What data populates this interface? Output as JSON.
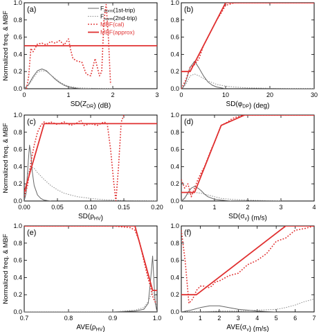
{
  "chart_data": [
    {
      "type": "line",
      "panel_label": "(a)",
      "xlabel": "SD(Z_DR) (dB)",
      "ylabel": "Normalized freq. & MBF",
      "xlim": [
        0,
        3
      ],
      "ylim": [
        0,
        1.0
      ],
      "xticks": [
        0,
        1,
        2,
        3
      ],
      "xtick_labels": [
        "0",
        "1",
        "2",
        "3"
      ],
      "yticks": [
        0,
        0.2,
        0.4,
        0.6,
        0.8,
        1.0
      ],
      "ytick_labels": [
        "0.0",
        "0.2",
        "0.4",
        "0.6",
        "0.8",
        "1.0"
      ],
      "legend": {
        "placement": "top-right",
        "entries": [
          "F_norm(1st-trip)",
          "F_norm(2nd-trip)",
          "MBF(cal)",
          "MBF(approx)"
        ]
      },
      "series": [
        {
          "style": "solid-gray",
          "x": [
            0.0,
            0.1,
            0.2,
            0.3,
            0.4,
            0.5,
            0.6,
            0.7,
            0.8,
            0.9,
            1.0,
            1.1,
            1.2,
            1.3,
            1.5
          ],
          "y": [
            0.0,
            0.05,
            0.14,
            0.21,
            0.23,
            0.21,
            0.16,
            0.11,
            0.07,
            0.04,
            0.02,
            0.01,
            0.005,
            0.0,
            0.0
          ]
        },
        {
          "style": "dotted-gray",
          "x": [
            0.0,
            0.1,
            0.2,
            0.3,
            0.4,
            0.5,
            0.6,
            0.7,
            0.8,
            0.9,
            1.0,
            1.2,
            1.5,
            1.8,
            2.0
          ],
          "y": [
            0.0,
            0.04,
            0.12,
            0.19,
            0.21,
            0.2,
            0.16,
            0.12,
            0.08,
            0.05,
            0.03,
            0.01,
            0.005,
            0.0,
            0.0
          ]
        },
        {
          "style": "dotted-red",
          "x": [
            0.05,
            0.1,
            0.15,
            0.2,
            0.3,
            0.4,
            0.5,
            0.6,
            0.7,
            0.8,
            0.9,
            1.0,
            1.05,
            1.1,
            1.2,
            1.3,
            1.4,
            1.5,
            1.6,
            1.7,
            1.75,
            1.8,
            1.85,
            1.9,
            1.95
          ],
          "y": [
            0.0,
            0.14,
            0.47,
            0.43,
            0.52,
            0.53,
            0.51,
            0.55,
            0.53,
            0.56,
            0.51,
            0.58,
            0.45,
            0.35,
            0.32,
            0.31,
            0.17,
            0.15,
            0.35,
            0.15,
            0.2,
            0.8,
            0.98,
            0.6,
            0.05
          ]
        },
        {
          "style": "solid-red",
          "x": [
            0,
            3
          ],
          "y": [
            0.5,
            0.5
          ]
        }
      ]
    },
    {
      "type": "line",
      "panel_label": "(b)",
      "xlabel": "SD(φ_DP) (deg)",
      "ylabel": "",
      "xlim": [
        0,
        30
      ],
      "ylim": [
        0,
        1.0
      ],
      "xticks": [
        0,
        10,
        20,
        30
      ],
      "xtick_labels": [
        "0",
        "10",
        "20",
        "30"
      ],
      "yticks": [
        0,
        0.2,
        0.4,
        0.6,
        0.8,
        1.0
      ],
      "ytick_labels": [
        "0.0",
        "0.2",
        "0.4",
        "0.6",
        "0.8",
        "1.0"
      ],
      "series": [
        {
          "style": "solid-gray",
          "x": [
            0,
            0.5,
            1,
            2,
            3,
            4,
            5,
            6,
            7,
            8,
            9,
            10
          ],
          "y": [
            0.0,
            0.02,
            0.08,
            0.25,
            0.32,
            0.24,
            0.15,
            0.08,
            0.04,
            0.02,
            0.01,
            0.0
          ]
        },
        {
          "style": "dotted-gray",
          "x": [
            0,
            1,
            2,
            3,
            4,
            5,
            6,
            8,
            10,
            12,
            15,
            20,
            25,
            30
          ],
          "y": [
            0.0,
            0.05,
            0.15,
            0.17,
            0.15,
            0.12,
            0.09,
            0.05,
            0.03,
            0.02,
            0.01,
            0.005,
            0.0,
            0.0
          ]
        },
        {
          "style": "dotted-red",
          "x": [
            0,
            1,
            2,
            3,
            4,
            5,
            6,
            7,
            8,
            9,
            10,
            12,
            15,
            20,
            25,
            30
          ],
          "y": [
            0.0,
            0.1,
            0.25,
            0.28,
            0.35,
            0.5,
            0.6,
            0.7,
            0.8,
            0.88,
            0.97,
            1.0,
            1.0,
            1.0,
            1.0,
            1.0
          ]
        },
        {
          "style": "solid-red",
          "x": [
            0,
            2,
            10,
            30
          ],
          "y": [
            0.2,
            0.2,
            1.0,
            1.0
          ]
        }
      ]
    },
    {
      "type": "line",
      "panel_label": "(c)",
      "xlabel": "SD(ρ_HV)",
      "ylabel": "Normalized freq. & MBF",
      "xlim": [
        0,
        0.2
      ],
      "ylim": [
        0,
        1.0
      ],
      "xticks": [
        0,
        0.05,
        0.1,
        0.15,
        0.2
      ],
      "xtick_labels": [
        "0.00",
        "0.05",
        "0.10",
        "0.15",
        "0.20"
      ],
      "yticks": [
        0,
        0.2,
        0.4,
        0.6,
        0.8,
        1.0
      ],
      "ytick_labels": [
        "0.0",
        "0.2",
        "0.4",
        "0.6",
        "0.8",
        "1.0"
      ],
      "series": [
        {
          "style": "solid-gray",
          "x": [
            0,
            0.003,
            0.006,
            0.008,
            0.01,
            0.012,
            0.015,
            0.02,
            0.025,
            0.03,
            0.04
          ],
          "y": [
            0.0,
            0.1,
            0.45,
            0.65,
            0.55,
            0.35,
            0.18,
            0.07,
            0.03,
            0.01,
            0.0
          ]
        },
        {
          "style": "dotted-gray",
          "x": [
            0,
            0.005,
            0.01,
            0.015,
            0.02,
            0.03,
            0.04,
            0.05,
            0.06,
            0.08,
            0.1,
            0.12,
            0.15,
            0.2
          ],
          "y": [
            0.0,
            0.3,
            0.4,
            0.38,
            0.33,
            0.25,
            0.18,
            0.13,
            0.09,
            0.05,
            0.03,
            0.015,
            0.005,
            0.0
          ]
        },
        {
          "style": "dotted-red",
          "x": [
            0,
            0.005,
            0.01,
            0.015,
            0.02,
            0.025,
            0.03,
            0.035,
            0.04,
            0.05,
            0.06,
            0.07,
            0.08,
            0.085,
            0.09,
            0.1,
            0.11,
            0.12,
            0.125,
            0.13,
            0.135,
            0.138,
            0.142,
            0.146,
            0.15
          ],
          "y": [
            0.05,
            0.18,
            0.45,
            0.65,
            0.8,
            0.88,
            0.92,
            0.9,
            0.92,
            0.89,
            0.92,
            0.88,
            0.91,
            0.94,
            0.88,
            0.9,
            0.88,
            0.92,
            0.9,
            0.6,
            0.2,
            0.0,
            0.4,
            0.92,
            1.0
          ]
        },
        {
          "style": "solid-red",
          "x": [
            0,
            0.03,
            0.2
          ],
          "y": [
            0.1,
            0.9,
            0.9
          ]
        }
      ]
    },
    {
      "type": "line",
      "panel_label": "(d)",
      "xlabel": "SD(σ_v) (m/s)",
      "ylabel": "",
      "xlim": [
        0,
        4
      ],
      "ylim": [
        0,
        1.0
      ],
      "xticks": [
        0,
        1,
        2,
        3,
        4
      ],
      "xtick_labels": [
        "0",
        "1",
        "2",
        "3",
        "4"
      ],
      "yticks": [
        0,
        0.2,
        0.4,
        0.6,
        0.8,
        1.0
      ],
      "ytick_labels": [
        "0.0",
        "0.2",
        "0.4",
        "0.6",
        "0.8",
        "1.0"
      ],
      "series": [
        {
          "style": "solid-gray",
          "x": [
            0,
            0.1,
            0.2,
            0.3,
            0.4,
            0.5,
            0.6,
            0.7,
            0.8,
            1.0,
            1.2,
            1.5
          ],
          "y": [
            0.0,
            0.03,
            0.1,
            0.15,
            0.17,
            0.15,
            0.12,
            0.08,
            0.05,
            0.02,
            0.01,
            0.0
          ]
        },
        {
          "style": "dotted-gray",
          "x": [
            0,
            0.2,
            0.4,
            0.6,
            0.8,
            1.0,
            1.2,
            1.5,
            2.0,
            2.5,
            3.0
          ],
          "y": [
            0.0,
            0.08,
            0.1,
            0.09,
            0.07,
            0.05,
            0.03,
            0.02,
            0.01,
            0.005,
            0.0
          ]
        },
        {
          "style": "dotted-red",
          "x": [
            0,
            0.1,
            0.2,
            0.3,
            0.4,
            0.5,
            0.6,
            0.7,
            0.8,
            0.9,
            1.0,
            1.1,
            1.2,
            1.3,
            1.4,
            1.5,
            1.6,
            1.7,
            1.8,
            1.9,
            2.0,
            2.2,
            2.5,
            3.0,
            3.5,
            4.0
          ],
          "y": [
            0.25,
            0.15,
            0.2,
            0.05,
            0.15,
            0.25,
            0.33,
            0.4,
            0.5,
            0.6,
            0.68,
            0.78,
            0.88,
            0.9,
            0.92,
            0.95,
            0.97,
            0.98,
            0.99,
            1.0,
            1.0,
            1.0,
            1.0,
            1.0,
            1.0,
            1.0
          ]
        },
        {
          "style": "solid-red",
          "x": [
            0,
            0.4,
            1.2,
            1.9,
            4.0
          ],
          "y": [
            0.1,
            0.1,
            0.88,
            1.0,
            1.0
          ]
        }
      ]
    },
    {
      "type": "line",
      "panel_label": "(e)",
      "xlabel": "AVE(ρ_HV)",
      "ylabel": "Normalized freq. & MBF",
      "xlim": [
        0.7,
        1.0
      ],
      "ylim": [
        0,
        1.0
      ],
      "xticks": [
        0.7,
        0.8,
        0.9,
        1.0
      ],
      "xtick_labels": [
        "0.7",
        "0.8",
        "0.9",
        "1.0"
      ],
      "yticks": [
        0,
        0.2,
        0.4,
        0.6,
        0.8,
        1.0
      ],
      "ytick_labels": [
        "0.0",
        "0.2",
        "0.4",
        "0.6",
        "0.8",
        "1.0"
      ],
      "series": [
        {
          "style": "solid-gray",
          "x": [
            0.7,
            0.8,
            0.9,
            0.95,
            0.97,
            0.98,
            0.985,
            0.99,
            0.993,
            0.996,
            1.0
          ],
          "y": [
            0.0,
            0.0,
            0.0,
            0.01,
            0.03,
            0.1,
            0.35,
            0.65,
            0.35,
            0.1,
            0.0
          ]
        },
        {
          "style": "dotted-gray",
          "x": [
            0.7,
            0.8,
            0.9,
            0.95,
            0.97,
            0.98,
            0.99,
            0.995,
            1.0
          ],
          "y": [
            0.0,
            0.0,
            0.0,
            0.02,
            0.05,
            0.12,
            0.25,
            0.15,
            0.05
          ]
        },
        {
          "style": "dotted-red",
          "x": [
            0.7,
            0.8,
            0.9,
            0.94,
            0.95,
            0.96,
            0.97,
            0.98,
            0.985,
            0.99,
            0.995,
            1.0
          ],
          "y": [
            1.0,
            1.0,
            1.0,
            0.98,
            0.95,
            0.82,
            0.6,
            0.38,
            0.3,
            0.18,
            0.12,
            0.1
          ]
        },
        {
          "style": "solid-red",
          "x": [
            0.7,
            0.95,
            0.99,
            1.0
          ],
          "y": [
            1.0,
            1.0,
            0.25,
            0.25
          ]
        }
      ]
    },
    {
      "type": "line",
      "panel_label": "(f)",
      "xlabel": "AVE(σ_v) (m/s)",
      "ylabel": "",
      "xlim": [
        0,
        7
      ],
      "ylim": [
        0,
        1.0
      ],
      "xticks": [
        0,
        1,
        2,
        3,
        4,
        5,
        6,
        7
      ],
      "xtick_labels": [
        "0",
        "1",
        "2",
        "3",
        "4",
        "5",
        "6",
        "7"
      ],
      "yticks": [
        0,
        0.2,
        0.4,
        0.6,
        0.8,
        1.0
      ],
      "ytick_labels": [
        "0.0",
        "0.2",
        "0.4",
        "0.6",
        "0.8",
        "1.0"
      ],
      "series": [
        {
          "style": "solid-gray",
          "x": [
            0,
            0.5,
            1.0,
            1.5,
            2.0,
            2.5,
            3.0,
            3.5,
            4.0,
            5.0
          ],
          "y": [
            0.0,
            0.02,
            0.05,
            0.07,
            0.07,
            0.05,
            0.03,
            0.02,
            0.01,
            0.0
          ]
        },
        {
          "style": "dotted-gray",
          "x": [
            0,
            1,
            2,
            3,
            4,
            5,
            5.5,
            6,
            6.5,
            7
          ],
          "y": [
            0.0,
            0.0,
            0.01,
            0.01,
            0.02,
            0.03,
            0.05,
            0.08,
            0.12,
            0.15
          ]
        },
        {
          "style": "dotted-red",
          "x": [
            0,
            0.2,
            0.4,
            0.6,
            0.8,
            1.0,
            1.2,
            1.4,
            1.6,
            1.8,
            2.0,
            2.5,
            3.0,
            3.5,
            4.0,
            4.5,
            5.0,
            5.5,
            6.0,
            6.5,
            7.0
          ],
          "y": [
            0.95,
            0.6,
            0.1,
            0.15,
            0.25,
            0.3,
            0.3,
            0.28,
            0.3,
            0.35,
            0.36,
            0.42,
            0.45,
            0.55,
            0.6,
            0.68,
            0.82,
            0.86,
            0.95,
            0.97,
            1.0
          ]
        },
        {
          "style": "solid-red",
          "x": [
            0,
            0.8,
            5.5,
            7.0
          ],
          "y": [
            0.2,
            0.2,
            1.0,
            1.0
          ]
        }
      ]
    }
  ]
}
